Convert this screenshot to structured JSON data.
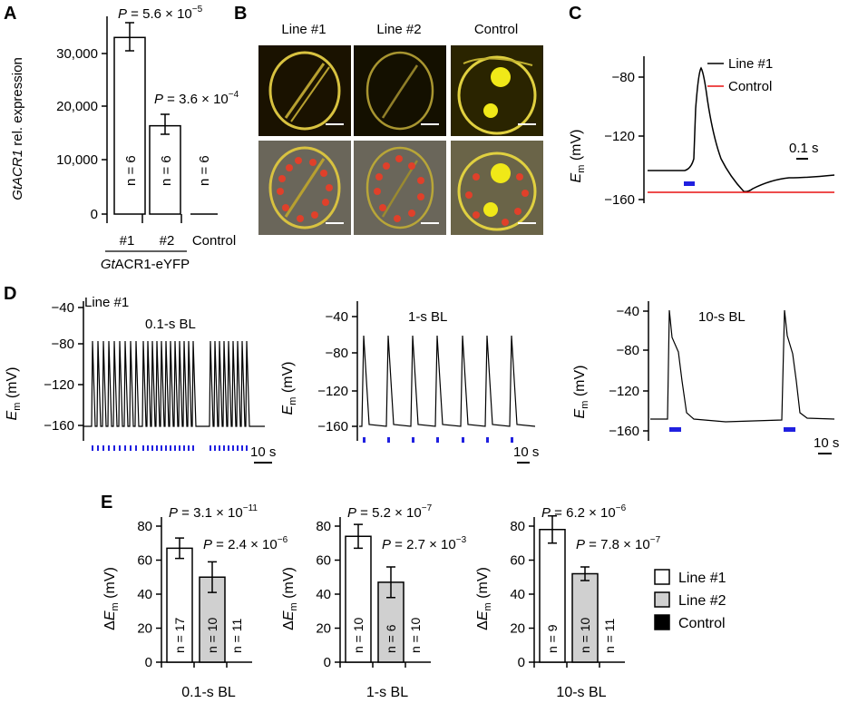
{
  "panels": {
    "A": {
      "letter": "A",
      "ylabel_italic": "GtACR1",
      "ylabel_rest": " rel. expression",
      "yticks": [
        "0",
        "10,000",
        "20,000",
        "30,000"
      ],
      "ytick_values": [
        0,
        10000,
        20000,
        30000
      ],
      "categories": [
        "#1",
        "#2",
        "Control"
      ],
      "group_label_italic": "Gt",
      "group_label_rest": "ACR1-eYFP",
      "pvals": [
        "5.6 × 10",
        "3.6 × 10"
      ],
      "pexps": [
        "−5",
        "−4"
      ],
      "n_labels": [
        "n = 6",
        "n = 6",
        "n = 6"
      ]
    },
    "B": {
      "letter": "B",
      "columns": [
        "Line #1",
        "Line #2",
        "Control"
      ]
    },
    "C": {
      "letter": "C",
      "ylabel": "E",
      "ylabel_sub": "m",
      "ylabel_unit": " (mV)",
      "yticks": [
        "−80",
        "−120",
        "−160"
      ],
      "legend": [
        "Line #1",
        "Control"
      ],
      "scalebar": "0.1 s"
    },
    "D": {
      "letter": "D",
      "line_label": "Line #1",
      "subtitles": [
        "0.1-s BL",
        "1-s BL",
        "10-s BL"
      ],
      "yticks": [
        "−40",
        "−80",
        "−120",
        "−160"
      ],
      "scalebars": [
        "10 s",
        "10 s",
        "10 s"
      ],
      "ylabel": "E",
      "ylabel_sub": "m",
      "ylabel_unit": " (mV)"
    },
    "E": {
      "letter": "E",
      "ylabel": "ΔE",
      "ylabel_sub": "m",
      "ylabel_unit": " (mV)",
      "yticks": [
        "0",
        "20",
        "40",
        "60",
        "80"
      ],
      "groups": [
        {
          "label": "0.1-s BL",
          "p1": "3.1 × 10",
          "p1exp": "−11",
          "p2": "2.4 × 10",
          "p2exp": "−6",
          "n": [
            "n = 17",
            "n = 10",
            "n = 11"
          ]
        },
        {
          "label": "1-s BL",
          "p1": "5.2 × 10",
          "p1exp": "−7",
          "p2": "2.7 × 10",
          "p2exp": "−3",
          "n": [
            "n = 10",
            "n = 6",
            "n = 10"
          ]
        },
        {
          "label": "10-s BL",
          "p1": "6.2 × 10",
          "p1exp": "−6",
          "p2": "7.8 × 10",
          "p2exp": "−7",
          "n": [
            "n = 9",
            "n = 10",
            "n = 11"
          ]
        }
      ],
      "legend": [
        "Line #1",
        "Line #2",
        "Control"
      ]
    }
  },
  "chart_data": [
    {
      "type": "bar",
      "panel": "A",
      "categories": [
        "#1",
        "#2",
        "Control"
      ],
      "values": [
        33000,
        16500,
        0
      ],
      "errors": [
        2000,
        2000,
        0
      ],
      "ylim": [
        0,
        35000
      ],
      "ylabel": "GtACR1 rel. expression",
      "xlabel": "GtACR1-eYFP"
    },
    {
      "type": "line",
      "panel": "C",
      "ylabel": "Em (mV)",
      "ylim": [
        -165,
        -65
      ],
      "series": [
        {
          "name": "Line #1",
          "color": "#000000"
        },
        {
          "name": "Control",
          "color": "#ff0000"
        }
      ]
    },
    {
      "type": "line",
      "panel": "D",
      "ylabel": "Em (mV)",
      "ylim": [
        -170,
        -40
      ],
      "subtitles": [
        "0.1-s BL",
        "1-s BL",
        "10-s BL"
      ]
    },
    {
      "type": "bar",
      "panel": "E",
      "ylabel": "ΔEm (mV)",
      "ylim": [
        0,
        85
      ],
      "categories": [
        "0.1-s BL",
        "1-s BL",
        "10-s BL"
      ],
      "series": [
        {
          "name": "Line #1",
          "color": "#ffffff",
          "values": [
            67,
            74,
            78
          ],
          "errors": [
            6,
            7,
            8
          ]
        },
        {
          "name": "Line #2",
          "color": "#d0d0d0",
          "values": [
            50,
            47,
            52
          ],
          "errors": [
            9,
            9,
            4
          ]
        },
        {
          "name": "Control",
          "color": "#000000",
          "values": [
            0,
            0,
            0
          ],
          "errors": [
            0,
            0,
            0
          ]
        }
      ]
    }
  ]
}
